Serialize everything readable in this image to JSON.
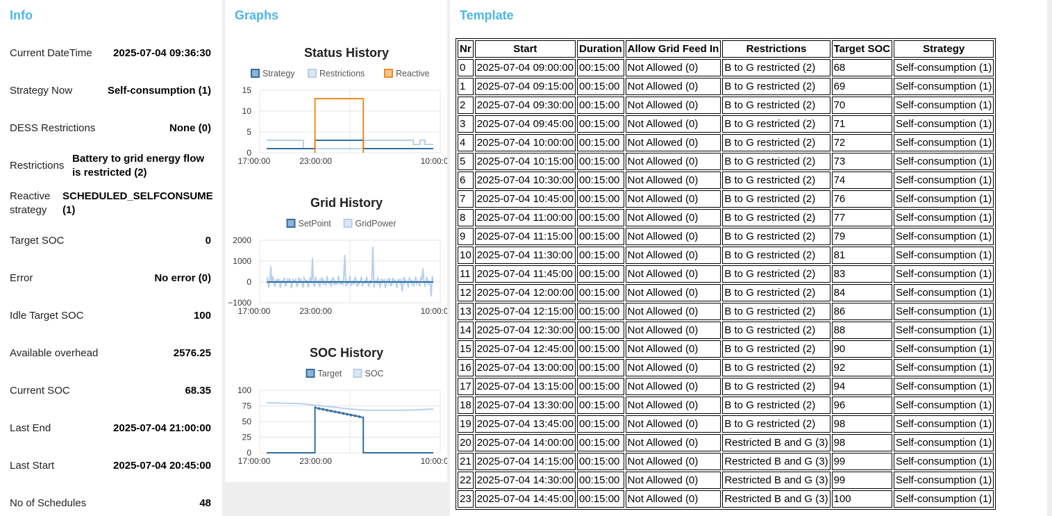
{
  "info": {
    "title": "Info",
    "rows": [
      {
        "label": "Current DateTime",
        "value": "2025-07-04 09:36:30"
      },
      {
        "label": "Strategy Now",
        "value": "Self-consumption (1)"
      },
      {
        "label": "DESS Restrictions",
        "value": "None (0)"
      },
      {
        "label": "Restrictions",
        "value": "Battery to grid energy flow is restricted (2)"
      },
      {
        "label": "Reactive strategy",
        "value": "SCHEDULED_SELFCONSUME (1)"
      },
      {
        "label": "Target SOC",
        "value": "0"
      },
      {
        "label": "Error",
        "value": "No error (0)"
      },
      {
        "label": "Idle Target SOC",
        "value": "100"
      },
      {
        "label": "Available overhead",
        "value": "2576.25"
      },
      {
        "label": "Current SOC",
        "value": "68.35"
      },
      {
        "label": "Last End",
        "value": "2025-07-04 21:00:00"
      },
      {
        "label": "Last Start",
        "value": "2025-07-04 20:45:00"
      },
      {
        "label": "No of Schedules",
        "value": "48"
      }
    ]
  },
  "graphs": {
    "title": "Graphs",
    "colors": {
      "dark_blue": "#2f6ea3",
      "light_blue": "#b8d0ea",
      "orange": "#f08a1c"
    },
    "charts": [
      {
        "type": "line",
        "title": "Status History",
        "legend": [
          "Strategy",
          "Restrictions",
          "Reactive"
        ],
        "yticks": [
          "15",
          "10",
          "5",
          "0"
        ],
        "ylim": [
          0,
          15
        ],
        "xticks": [
          "17:00:00",
          "23:00:00",
          "10:00:00"
        ],
        "series": [
          {
            "name": "Strategy",
            "color": "#2f6ea3",
            "points": [
              [
                0,
                1
              ],
              [
                0.29,
                1
              ],
              [
                0.29,
                3
              ],
              [
                0.58,
                3
              ],
              [
                0.58,
                1
              ],
              [
                1,
                1
              ]
            ]
          },
          {
            "name": "Restrictions",
            "color": "#b8d0ea",
            "points": [
              [
                0,
                3
              ],
              [
                0.22,
                3
              ],
              [
                0.22,
                1
              ],
              [
                0.58,
                1
              ],
              [
                0.58,
                3
              ],
              [
                0.88,
                3
              ],
              [
                0.88,
                2
              ],
              [
                0.92,
                2
              ],
              [
                0.92,
                3
              ],
              [
                0.95,
                3
              ],
              [
                0.95,
                2
              ],
              [
                1,
                2
              ]
            ]
          },
          {
            "name": "Reactive",
            "color": "#f08a1c",
            "points": [
              [
                0.29,
                0
              ],
              [
                0.29,
                13
              ],
              [
                0.58,
                13
              ],
              [
                0.58,
                0
              ]
            ]
          }
        ]
      },
      {
        "type": "line",
        "title": "Grid History",
        "legend": [
          "SetPoint",
          "GridPower"
        ],
        "yticks": [
          "2000",
          "1000",
          "0",
          "−1000"
        ],
        "ylim": [
          -1000,
          2000
        ],
        "xticks": [
          "17:00:00",
          "23:00:00",
          "10:00:00"
        ],
        "series": [
          {
            "name": "SetPoint",
            "color": "#2f6ea3"
          },
          {
            "name": "GridPower",
            "color": "#b8d0ea"
          }
        ]
      },
      {
        "type": "line",
        "title": "SOC History",
        "legend": [
          "Target",
          "SOC"
        ],
        "yticks": [
          "100",
          "75",
          "50",
          "25",
          "0"
        ],
        "ylim": [
          0,
          100
        ],
        "xticks": [
          "17:00:00",
          "23:00:00",
          "10:00:00"
        ],
        "series": [
          {
            "name": "Target",
            "color": "#2f6ea3"
          },
          {
            "name": "SOC",
            "color": "#b8d0ea"
          }
        ]
      }
    ]
  },
  "template": {
    "title": "Template",
    "columns": [
      "Nr",
      "Start",
      "Duration",
      "Allow Grid Feed In",
      "Restrictions",
      "Target SOC",
      "Strategy"
    ],
    "rows": [
      [
        "0",
        "2025-07-04 09:00:00",
        "00:15:00",
        "Not Allowed (0)",
        "B to G restricted (2)",
        "68",
        "Self-consumption (1)"
      ],
      [
        "1",
        "2025-07-04 09:15:00",
        "00:15:00",
        "Not Allowed (0)",
        "B to G restricted (2)",
        "69",
        "Self-consumption (1)"
      ],
      [
        "2",
        "2025-07-04 09:30:00",
        "00:15:00",
        "Not Allowed (0)",
        "B to G restricted (2)",
        "70",
        "Self-consumption (1)"
      ],
      [
        "3",
        "2025-07-04 09:45:00",
        "00:15:00",
        "Not Allowed (0)",
        "B to G restricted (2)",
        "71",
        "Self-consumption (1)"
      ],
      [
        "4",
        "2025-07-04 10:00:00",
        "00:15:00",
        "Not Allowed (0)",
        "B to G restricted (2)",
        "72",
        "Self-consumption (1)"
      ],
      [
        "5",
        "2025-07-04 10:15:00",
        "00:15:00",
        "Not Allowed (0)",
        "B to G restricted (2)",
        "73",
        "Self-consumption (1)"
      ],
      [
        "6",
        "2025-07-04 10:30:00",
        "00:15:00",
        "Not Allowed (0)",
        "B to G restricted (2)",
        "74",
        "Self-consumption (1)"
      ],
      [
        "7",
        "2025-07-04 10:45:00",
        "00:15:00",
        "Not Allowed (0)",
        "B to G restricted (2)",
        "76",
        "Self-consumption (1)"
      ],
      [
        "8",
        "2025-07-04 11:00:00",
        "00:15:00",
        "Not Allowed (0)",
        "B to G restricted (2)",
        "77",
        "Self-consumption (1)"
      ],
      [
        "9",
        "2025-07-04 11:15:00",
        "00:15:00",
        "Not Allowed (0)",
        "B to G restricted (2)",
        "79",
        "Self-consumption (1)"
      ],
      [
        "10",
        "2025-07-04 11:30:00",
        "00:15:00",
        "Not Allowed (0)",
        "B to G restricted (2)",
        "81",
        "Self-consumption (1)"
      ],
      [
        "11",
        "2025-07-04 11:45:00",
        "00:15:00",
        "Not Allowed (0)",
        "B to G restricted (2)",
        "83",
        "Self-consumption (1)"
      ],
      [
        "12",
        "2025-07-04 12:00:00",
        "00:15:00",
        "Not Allowed (0)",
        "B to G restricted (2)",
        "84",
        "Self-consumption (1)"
      ],
      [
        "13",
        "2025-07-04 12:15:00",
        "00:15:00",
        "Not Allowed (0)",
        "B to G restricted (2)",
        "86",
        "Self-consumption (1)"
      ],
      [
        "14",
        "2025-07-04 12:30:00",
        "00:15:00",
        "Not Allowed (0)",
        "B to G restricted (2)",
        "88",
        "Self-consumption (1)"
      ],
      [
        "15",
        "2025-07-04 12:45:00",
        "00:15:00",
        "Not Allowed (0)",
        "B to G restricted (2)",
        "90",
        "Self-consumption (1)"
      ],
      [
        "16",
        "2025-07-04 13:00:00",
        "00:15:00",
        "Not Allowed (0)",
        "B to G restricted (2)",
        "92",
        "Self-consumption (1)"
      ],
      [
        "17",
        "2025-07-04 13:15:00",
        "00:15:00",
        "Not Allowed (0)",
        "B to G restricted (2)",
        "94",
        "Self-consumption (1)"
      ],
      [
        "18",
        "2025-07-04 13:30:00",
        "00:15:00",
        "Not Allowed (0)",
        "B to G restricted (2)",
        "96",
        "Self-consumption (1)"
      ],
      [
        "19",
        "2025-07-04 13:45:00",
        "00:15:00",
        "Not Allowed (0)",
        "B to G restricted (2)",
        "98",
        "Self-consumption (1)"
      ],
      [
        "20",
        "2025-07-04 14:00:00",
        "00:15:00",
        "Not Allowed (0)",
        "Restricted B and G (3)",
        "98",
        "Self-consumption (1)"
      ],
      [
        "21",
        "2025-07-04 14:15:00",
        "00:15:00",
        "Not Allowed (0)",
        "Restricted B and G (3)",
        "99",
        "Self-consumption (1)"
      ],
      [
        "22",
        "2025-07-04 14:30:00",
        "00:15:00",
        "Not Allowed (0)",
        "Restricted B and G (3)",
        "99",
        "Self-consumption (1)"
      ],
      [
        "23",
        "2025-07-04 14:45:00",
        "00:15:00",
        "Not Allowed (0)",
        "Restricted B and G (3)",
        "100",
        "Self-consumption (1)"
      ]
    ]
  }
}
